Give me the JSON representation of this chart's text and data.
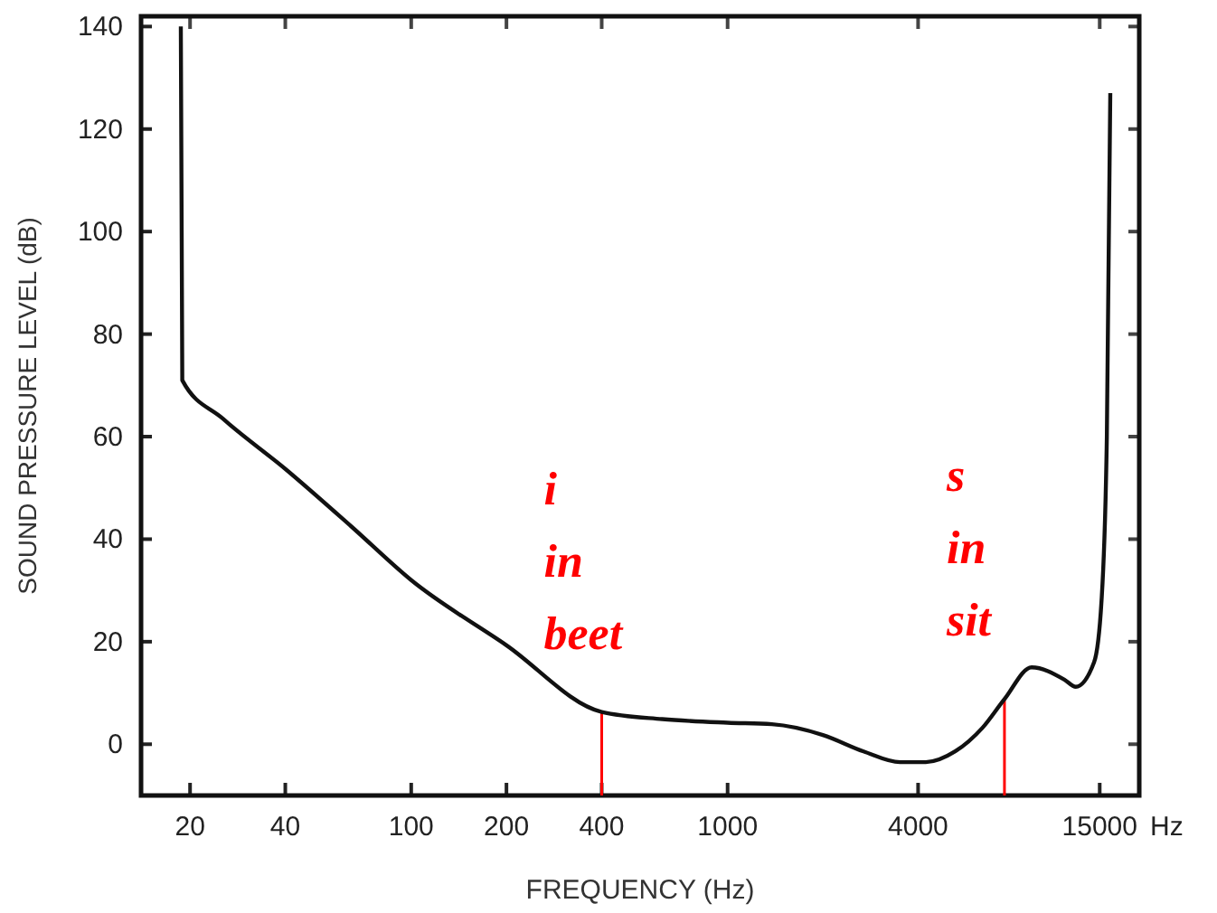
{
  "chart_data": {
    "type": "line",
    "xlabel": "FREQUENCY (Hz)",
    "ylabel": "SOUND PRESSURE LEVEL (dB)",
    "log": "x",
    "xlim": [
      14,
      20000
    ],
    "ylim": [
      -10,
      142
    ],
    "xticks": [
      20,
      40,
      100,
      200,
      400,
      1000,
      4000,
      15000
    ],
    "yticks": [
      0,
      20,
      40,
      60,
      80,
      100,
      120,
      140
    ],
    "grid": false,
    "marker": "none",
    "line_style": "solid",
    "series": [
      {
        "color": "#111111",
        "x": [
          18.7,
          18.9,
          25.4,
          40,
          64.6,
          100,
          200,
          400,
          621,
          1000,
          1380,
          2000,
          2690,
          3510,
          4230,
          5240,
          6390,
          7500,
          9140,
          11600,
          12600,
          14400,
          15200,
          15800,
          16200
        ],
        "values": [
          140,
          71,
          63.5,
          53.7,
          42.5,
          32,
          19.3,
          6.3,
          4.9,
          4.2,
          3.9,
          1.8,
          -1.4,
          -3.5,
          -3.5,
          -1.4,
          3.2,
          8.8,
          15,
          12.6,
          11.2,
          16,
          28,
          60,
          127
        ]
      }
    ],
    "ref_lines": [
      {
        "axis": "x",
        "value": 400,
        "label": "i in beet",
        "color": "#ff0000"
      },
      {
        "axis": "x",
        "value": 7500,
        "label": "s in sit",
        "color": "#ff0000"
      }
    ],
    "annotations": [
      "Hz"
    ]
  }
}
